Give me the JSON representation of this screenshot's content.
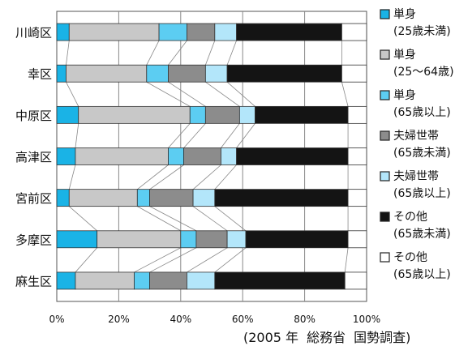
{
  "chart_data": {
    "type": "bar",
    "stacked": true,
    "orientation": "horizontal",
    "percent_scale": true,
    "categories": [
      "川崎区",
      "幸区",
      "中原区",
      "高津区",
      "宮前区",
      "多摩区",
      "麻生区"
    ],
    "series": [
      {
        "name": "単身（25歳未満）",
        "color": "#1ab3e6",
        "values": [
          4,
          3,
          7,
          6,
          4,
          13,
          6
        ]
      },
      {
        "name": "単身（25〜64歳）",
        "color": "#c8c8c8",
        "values": [
          29,
          26,
          36,
          30,
          22,
          27,
          19
        ]
      },
      {
        "name": "単身（65歳以上）",
        "color": "#5ccdf2",
        "values": [
          9,
          7,
          5,
          5,
          4,
          5,
          5
        ]
      },
      {
        "name": "夫婦世帯（65歳未満）",
        "color": "#8c8c8c",
        "values": [
          9,
          12,
          11,
          12,
          14,
          10,
          12
        ]
      },
      {
        "name": "夫婦世帯（65歳以上）",
        "color": "#b3e6fa",
        "values": [
          7,
          7,
          5,
          5,
          7,
          6,
          9
        ]
      },
      {
        "name": "その他（65歳未満）",
        "color": "#141414",
        "values": [
          34,
          37,
          30,
          36,
          43,
          33,
          42
        ]
      },
      {
        "name": "その他（65歳以上）",
        "color": "#ffffff",
        "values": [
          8,
          8,
          6,
          6,
          6,
          6,
          7
        ]
      }
    ],
    "xlim": [
      0,
      100
    ],
    "xticks": [
      "0%",
      "20%",
      "40%",
      "60%",
      "80%",
      "100%"
    ],
    "grid": true,
    "legend_position": "right",
    "legend": [
      {
        "line1": "単身",
        "line2": "(25歳未満)"
      },
      {
        "line1": "単身",
        "line2": "(25〜64歳)"
      },
      {
        "line1": "単身",
        "line2": "(65歳以上)"
      },
      {
        "line1": "夫婦世帯",
        "line2": "(65歳未満)"
      },
      {
        "line1": "夫婦世帯",
        "line2": "(65歳以上)"
      },
      {
        "line1": "その他",
        "line2": "(65歳未満)"
      },
      {
        "line1": "その他",
        "line2": "(65歳以上)"
      }
    ]
  },
  "caption": {
    "year": "(2005 年",
    "org": "総務省",
    "survey": "国勢調査)"
  }
}
